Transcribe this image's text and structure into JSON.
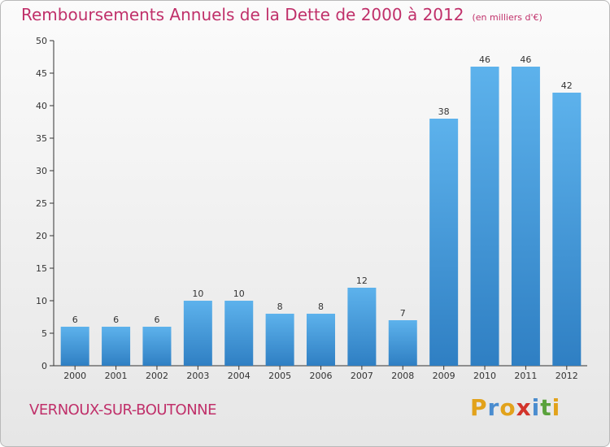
{
  "header": {
    "title": "Remboursements Annuels de la Dette de 2000 à 2012",
    "unit": "(en milliers d'€)"
  },
  "footer": {
    "city": "VERNOUX-SUR-BOUTONNE",
    "logo": {
      "letters": [
        "P",
        "r",
        "o",
        "x",
        "i",
        "t",
        "i"
      ],
      "colors": [
        "#e2a21b",
        "#4a8ccf",
        "#e2a21b",
        "#d2342b",
        "#4a8ccf",
        "#5aa23c",
        "#e2a21b"
      ]
    }
  },
  "colors": {
    "bar": "#3f95d9",
    "bar_light": "#5bb0ea",
    "accent_text": "#c0306a"
  },
  "chart_data": {
    "type": "bar",
    "title": "Remboursements Annuels de la Dette de 2000 à 2012",
    "subtitle": "(en milliers d'€)",
    "xlabel": "",
    "ylabel": "",
    "categories": [
      "2000",
      "2001",
      "2002",
      "2003",
      "2004",
      "2005",
      "2006",
      "2007",
      "2008",
      "2009",
      "2010",
      "2011",
      "2012"
    ],
    "values": [
      6,
      6,
      6,
      10,
      10,
      8,
      8,
      12,
      7,
      38,
      46,
      46,
      42
    ],
    "ylim": [
      0,
      50
    ],
    "yticks": [
      0,
      5,
      10,
      15,
      20,
      25,
      30,
      35,
      40,
      45,
      50
    ],
    "grid": false,
    "legend": "none"
  }
}
